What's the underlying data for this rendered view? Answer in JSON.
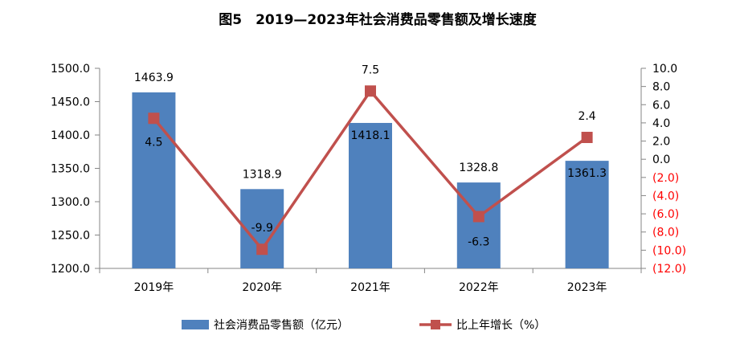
{
  "chart_data": {
    "type": "bar",
    "title": "图5　2019—2023年社会消费品零售额及增长速度",
    "categories": [
      "2019年",
      "2020年",
      "2021年",
      "2022年",
      "2023年"
    ],
    "series": [
      {
        "name": "社会消费品零售额（亿元）",
        "type": "bar",
        "axis": "left",
        "color": "#4f81bd",
        "values": [
          1463.9,
          1318.9,
          1418.1,
          1328.8,
          1361.3
        ],
        "labels": [
          "1463.9",
          "1318.9",
          "1418.1",
          "1328.8",
          "1361.3"
        ]
      },
      {
        "name": "比上年增长（%）",
        "type": "line",
        "axis": "right",
        "color": "#c0504d",
        "values": [
          4.5,
          -9.9,
          7.5,
          -6.3,
          2.4
        ],
        "labels": [
          "4.5",
          "-9.9",
          "7.5",
          "-6.3",
          "2.4"
        ]
      }
    ],
    "y_left": {
      "min": 1200,
      "max": 1500,
      "ticks": [
        "1200.0",
        "1250.0",
        "1300.0",
        "1350.0",
        "1400.0",
        "1450.0",
        "1500.0"
      ]
    },
    "y_right": {
      "min": -12,
      "max": 10,
      "ticks": [
        "(12.0)",
        "(10.0)",
        "(8.0)",
        "(6.0)",
        "(4.0)",
        "(2.0)",
        "0.0",
        "2.0",
        "4.0",
        "6.0",
        "8.0",
        "10.0"
      ],
      "negative_color": "#ff0000"
    },
    "legend_position": "bottom",
    "grid": false
  }
}
